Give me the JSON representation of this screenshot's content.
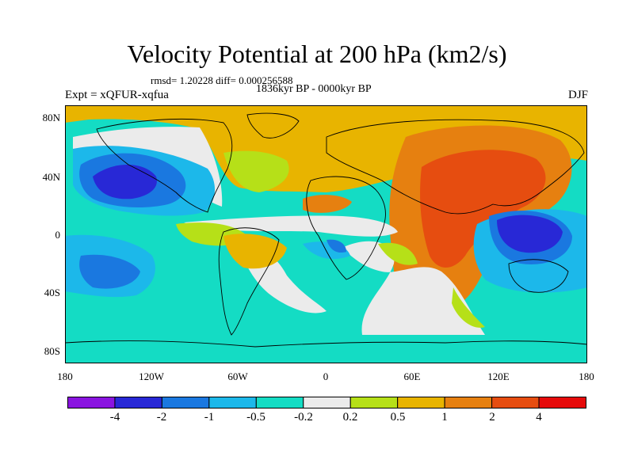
{
  "title": "Velocity Potential at 200 hPa (km2/s)",
  "stats_line": "rmsd= 1.20228 diff= 0.000256588",
  "period": "1836kyr BP - 0000kyr BP",
  "experiment": "Expt = xQFUR-xqfua",
  "season": "DJF",
  "lat_labels": [
    "80N",
    "40N",
    "0",
    "40S",
    "80S"
  ],
  "lon_labels": [
    "180",
    "120W",
    "60W",
    "0",
    "60E",
    "120E",
    "180"
  ],
  "colorbar": {
    "labels": [
      "-4",
      "-2",
      "-1",
      "-0.5",
      "-0.2",
      "0.2",
      "0.5",
      "1",
      "2",
      "4"
    ],
    "colors": [
      "#8a14e0",
      "#2828d6",
      "#1a78e0",
      "#1cb8ea",
      "#14dcc4",
      "#ebebeb",
      "#b6e018",
      "#e8b400",
      "#e68010",
      "#e64d10",
      "#e60a0a"
    ]
  }
}
